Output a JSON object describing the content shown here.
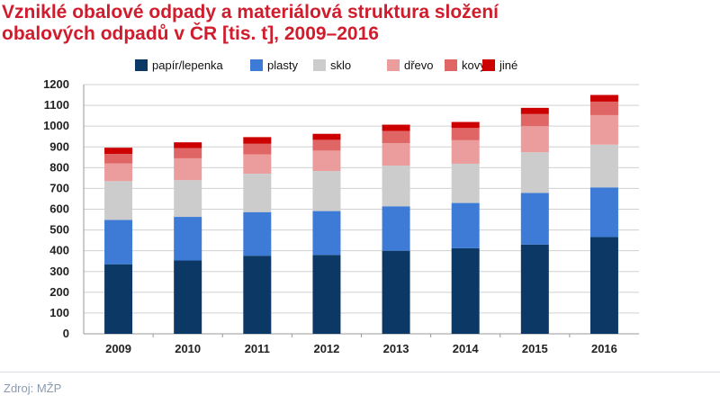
{
  "title_line1": "Vzniklé obalové odpady a materiálová struktura složení",
  "title_line2": "obalových odpadů v ČR [tis. t], 2009–2016",
  "source": "Zdroj: MŽP",
  "chart_data": {
    "type": "bar",
    "stacked": true,
    "categories": [
      "2009",
      "2010",
      "2011",
      "2012",
      "2013",
      "2014",
      "2015",
      "2016"
    ],
    "series": [
      {
        "name": "papír/lepenka",
        "color": "#0b3865",
        "values": [
          335,
          353,
          376,
          380,
          400,
          412,
          430,
          466
        ]
      },
      {
        "name": "plasty",
        "color": "#3d7bd6",
        "values": [
          213,
          210,
          210,
          211,
          214,
          218,
          248,
          239
        ]
      },
      {
        "name": "sklo",
        "color": "#cccccc",
        "values": [
          187,
          177,
          185,
          193,
          196,
          189,
          196,
          206
        ]
      },
      {
        "name": "dřevo",
        "color": "#eb9c9c",
        "values": [
          85,
          105,
          93,
          98,
          108,
          113,
          126,
          142
        ]
      },
      {
        "name": "kovy",
        "color": "#e06666",
        "values": [
          46,
          49,
          51,
          52,
          59,
          59,
          58,
          65
        ]
      },
      {
        "name": "jiné",
        "color": "#cc0000",
        "values": [
          30,
          28,
          32,
          29,
          30,
          29,
          30,
          32
        ]
      }
    ],
    "ylim": [
      0,
      1200
    ],
    "yticks": [
      0,
      100,
      200,
      300,
      400,
      500,
      600,
      700,
      800,
      900,
      1000,
      1100,
      1200
    ],
    "grid": true,
    "legend": "top"
  }
}
